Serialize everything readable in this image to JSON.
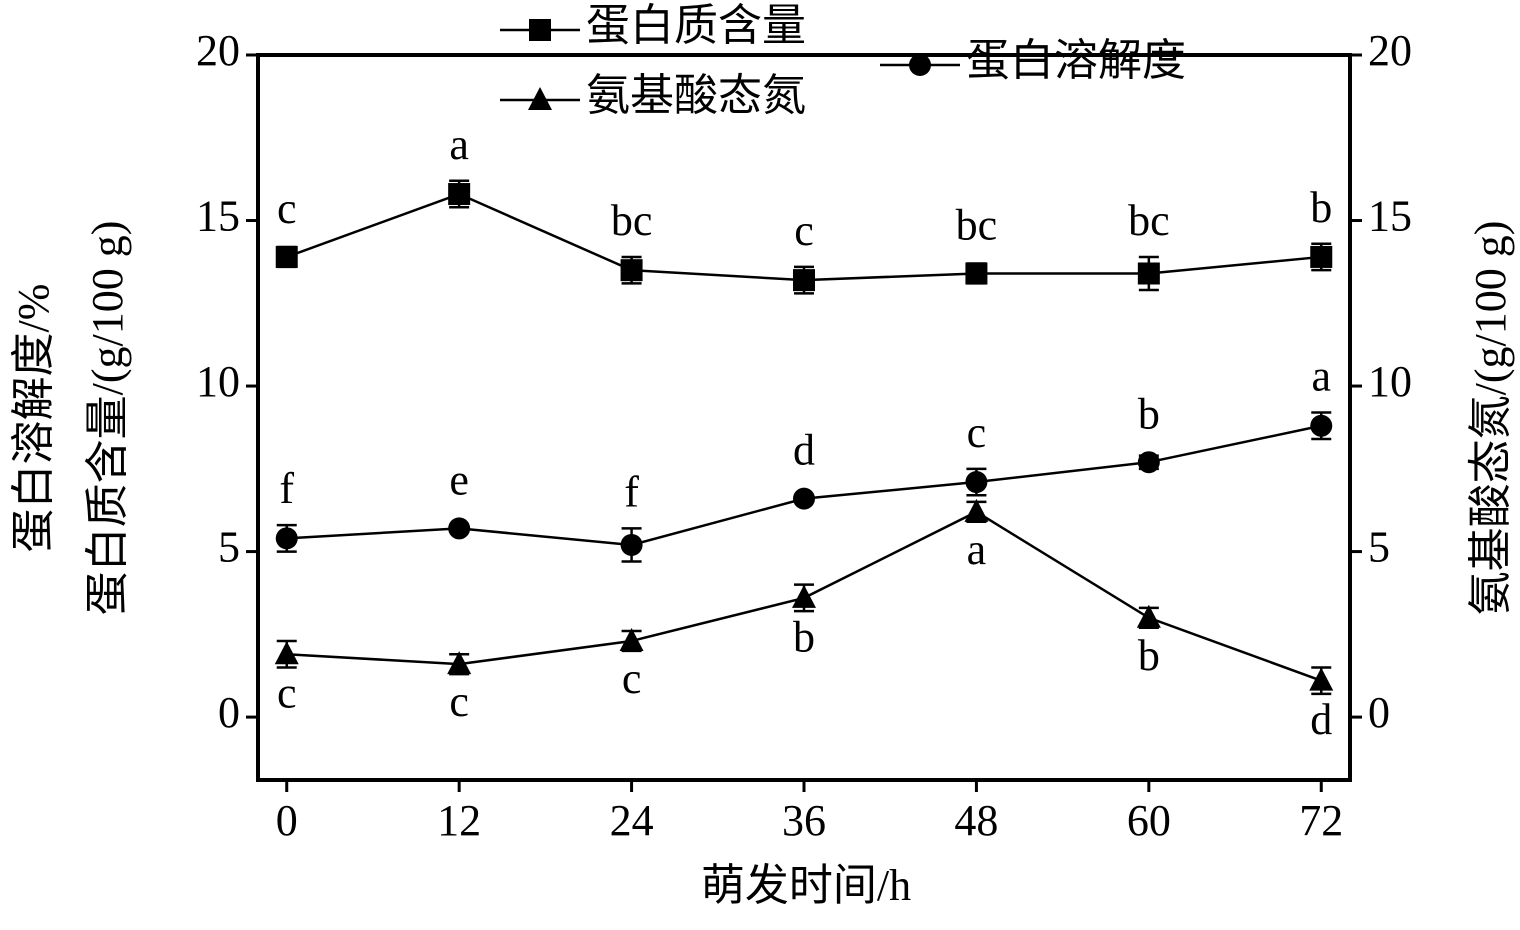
{
  "chart_data": {
    "type": "line",
    "xlabel": "萌发时间/h",
    "ylabel": [
      "蛋白溶解度/%",
      "蛋白质含量/(g/100 g)"
    ],
    "y2label": "氨基酸态氮/(g/100 g)",
    "x": [
      0,
      12,
      24,
      36,
      48,
      60,
      72
    ],
    "xlim": [
      -2,
      74
    ],
    "xticks": [
      0,
      12,
      24,
      36,
      48,
      60,
      72
    ],
    "ylim": [
      -1.9,
      20
    ],
    "yticks": [
      0,
      5,
      10,
      15,
      20
    ],
    "y2lim": [
      -1.9,
      20
    ],
    "y2ticks": [
      0,
      5,
      10,
      15,
      20
    ],
    "series": [
      {
        "name": "蛋白质含量",
        "color": "#000000",
        "marker": "square",
        "values": [
          13.9,
          15.8,
          13.5,
          13.2,
          13.4,
          13.4,
          13.9
        ],
        "errors": [
          0.3,
          0.4,
          0.4,
          0.4,
          0.3,
          0.5,
          0.4
        ],
        "labels": [
          "c",
          "a",
          "bc",
          "c",
          "bc",
          "bc",
          "b"
        ],
        "label_side": "above"
      },
      {
        "name": "氨基酸态氮",
        "color": "#000000",
        "marker": "triangle",
        "axis": "y2",
        "values": [
          1.9,
          1.6,
          2.3,
          3.6,
          6.2,
          3.0,
          1.1
        ],
        "errors": [
          0.4,
          0.3,
          0.3,
          0.4,
          0.3,
          0.3,
          0.4
        ],
        "labels": [
          "c",
          "c",
          "c",
          "b",
          "a",
          "b",
          "d"
        ],
        "label_side": "below"
      },
      {
        "name": "蛋白溶解度",
        "color": "#000000",
        "marker": "circle",
        "values": [
          5.4,
          5.7,
          5.2,
          6.6,
          7.1,
          7.7,
          8.8
        ],
        "errors": [
          0.4,
          0.0,
          0.5,
          0.0,
          0.4,
          0.2,
          0.4
        ],
        "labels": [
          "f",
          "e",
          "f",
          "d",
          "c",
          "b",
          "a"
        ],
        "label_side": "above"
      }
    ]
  }
}
